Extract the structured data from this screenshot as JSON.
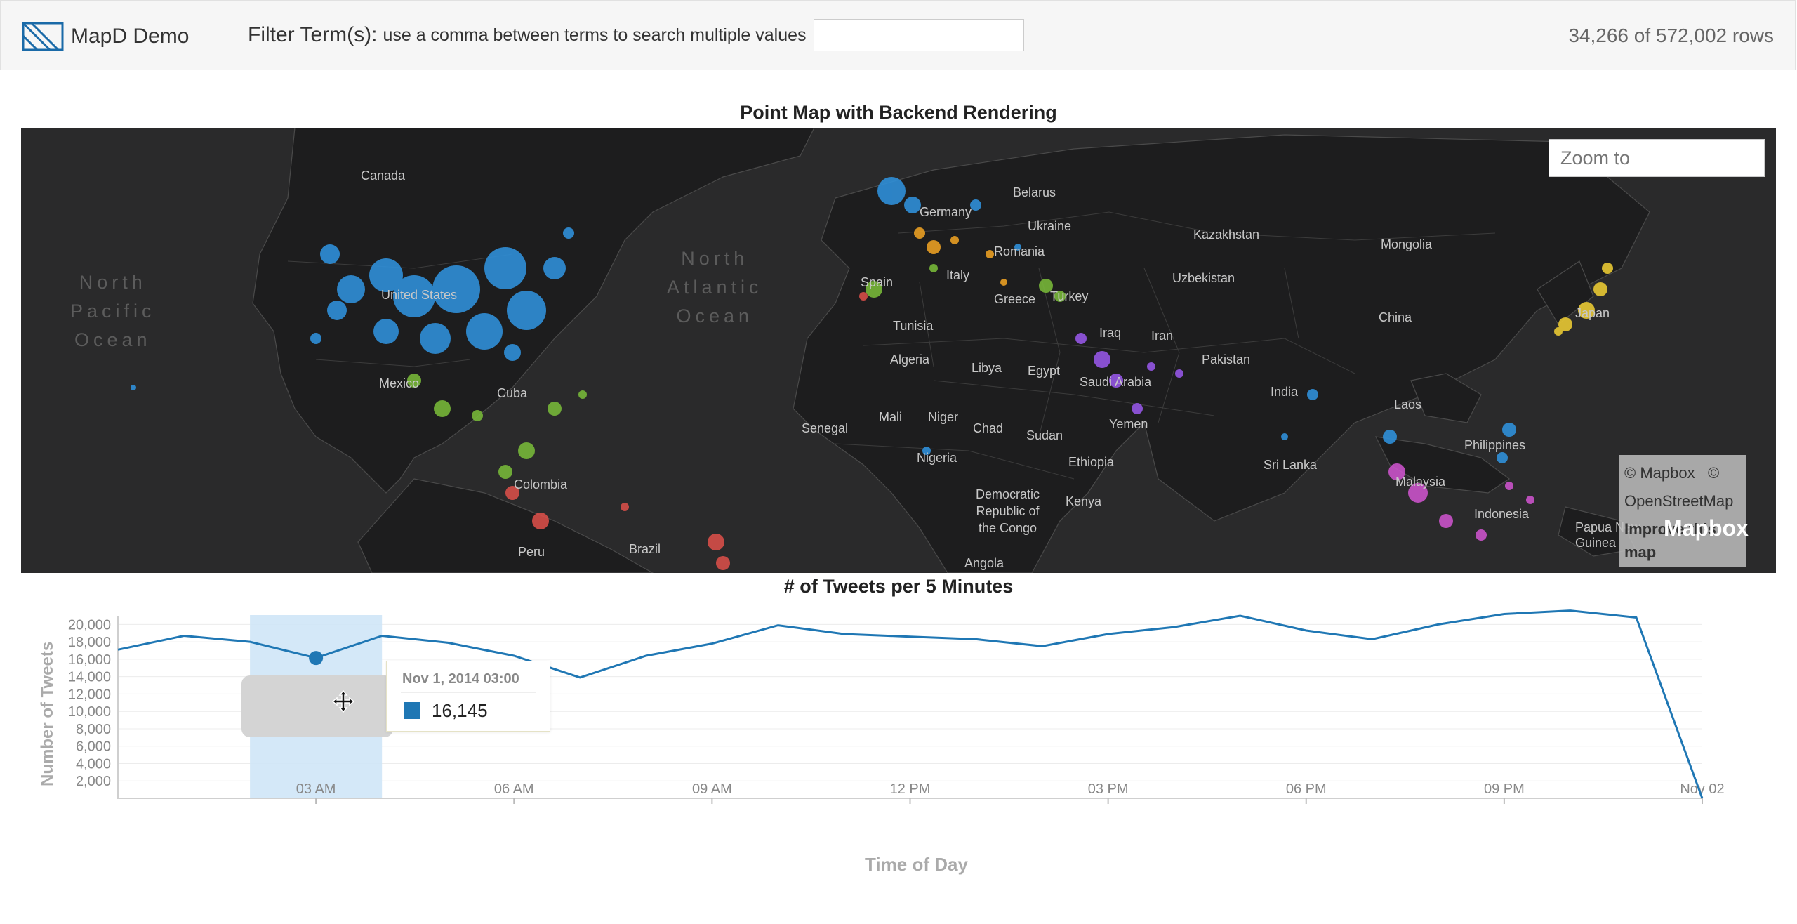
{
  "header": {
    "app_name": "MapD Demo",
    "filter_label": "Filter Term(s):",
    "filter_help": "use a comma between terms to search multiple values",
    "filter_value": "",
    "rows_count": "34,266 of 572,002 rows",
    "logo_icon": "mapd-logo-icon"
  },
  "map": {
    "title": "Point Map with Backend Rendering",
    "zoom_placeholder": "Zoom to",
    "attribution": {
      "mapbox": "© Mapbox",
      "copyright_sign": "©",
      "osm": "OpenStreetMap",
      "improve": "Improve this",
      "map_word": "map"
    },
    "mapbox_logo": "Mapbox",
    "oceans": {
      "north_pacific": "North\nPacific\nOcean",
      "north_atlantic": "North\nAtlantic\nOcean"
    },
    "countries": {
      "canada": "Canada",
      "united_states": "United States",
      "mexico": "Mexico",
      "cuba": "Cuba",
      "colombia": "Colombia",
      "peru": "Peru",
      "brazil": "Brazil",
      "germany": "Germany",
      "belarus": "Belarus",
      "ukraine": "Ukraine",
      "romania": "Romania",
      "spain": "Spain",
      "italy": "Italy",
      "greece": "Greece",
      "turkey": "Turkey",
      "kazakhstan": "Kazakhstan",
      "mongolia": "Mongolia",
      "uzbekistan": "Uzbekistan",
      "china": "China",
      "japan": "Japan",
      "tunisia": "Tunisia",
      "algeria": "Algeria",
      "libya": "Libya",
      "egypt": "Egypt",
      "iraq": "Iraq",
      "iran": "Iran",
      "pakistan": "Pakistan",
      "india": "India",
      "saudi_arabia": "Saudi Arabia",
      "yemen": "Yemen",
      "mali": "Mali",
      "niger": "Niger",
      "chad": "Chad",
      "sudan": "Sudan",
      "senegal": "Senegal",
      "nigeria": "Nigeria",
      "ethiopia": "Ethiopia",
      "drc": "Democratic\nRepublic of\nthe Congo",
      "kenya": "Kenya",
      "angola": "Angola",
      "sri_lanka": "Sri Lanka",
      "laos": "Laos",
      "philippines": "Philippines",
      "malaysia": "Malaysia",
      "indonesia": "Indonesia",
      "papua": "Papua New\nGuinea"
    }
  },
  "chart": {
    "title": "# of Tweets per 5 Minutes",
    "ylabel": "Number of Tweets",
    "xlabel": "Time of Day",
    "tooltip": {
      "date": "Nov 1, 2014  03:00",
      "value": "16,145"
    }
  },
  "chart_data": {
    "type": "line",
    "title": "# of Tweets per 5 Minutes",
    "xlabel": "Time of Day",
    "ylabel": "Number of Tweets",
    "x_ticks": [
      "03 AM",
      "06 AM",
      "09 AM",
      "12 PM",
      "03 PM",
      "06 PM",
      "09 PM",
      "Nov 02"
    ],
    "y_ticks": [
      "2,000",
      "4,000",
      "6,000",
      "8,000",
      "10,000",
      "12,000",
      "14,000",
      "16,000",
      "18,000",
      "20,000"
    ],
    "ylim": [
      0,
      21000
    ],
    "xlim_hours": [
      0,
      24
    ],
    "brush_hours": [
      2,
      4
    ],
    "highlight": {
      "x_hour": 3,
      "y": 16145
    },
    "series": [
      {
        "x_hours": [
          0,
          1,
          2,
          3,
          4,
          5,
          6,
          7,
          8,
          9,
          10,
          11,
          12,
          13,
          14,
          15,
          16,
          17,
          18,
          19,
          20,
          21,
          22,
          23,
          24
        ],
        "values": [
          17100,
          18700,
          18000,
          16145,
          18700,
          17900,
          16400,
          13900,
          16400,
          17800,
          19900,
          18900,
          18600,
          18300,
          17500,
          18900,
          19700,
          21000,
          19300,
          18300,
          20000,
          21200,
          21600,
          20800,
          0
        ]
      }
    ],
    "color": "#1f77b4"
  }
}
